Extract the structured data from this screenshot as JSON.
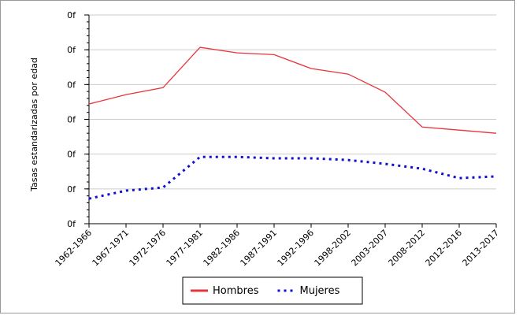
{
  "chart_data": {
    "type": "line",
    "y_label": "Tasas estandarizadas por edad",
    "categories": [
      "1962-1966",
      "1967-1971",
      "1972-1976",
      "1977-1981",
      "1982-1986",
      "1987-1991",
      "1992-1996",
      "1998-2002",
      "2003-2007",
      "2008-2012",
      "2012-2016",
      "2013-2017"
    ],
    "series": [
      {
        "name": "Hombres",
        "color": "#e8333a",
        "style": "solid",
        "values": [
          34.4,
          37.1,
          39.1,
          50.7,
          49.1,
          48.6,
          44.6,
          43.0,
          37.8,
          27.8,
          26.9,
          26.0
        ]
      },
      {
        "name": "Mujeres",
        "color": "#1010d0",
        "style": "dotted",
        "values": [
          7.2,
          9.5,
          10.4,
          19.2,
          19.2,
          18.8,
          18.8,
          18.3,
          17.2,
          15.8,
          13.1,
          13.6
        ]
      }
    ],
    "ylim": [
      0,
      60
    ],
    "yticks": [
      {
        "value": 0,
        "label": "0f"
      },
      {
        "value": 10,
        "label": "0f"
      },
      {
        "value": 20,
        "label": "0f"
      },
      {
        "value": 30,
        "label": "0f"
      },
      {
        "value": 40,
        "label": "0f"
      },
      {
        "value": 50,
        "label": "0f"
      },
      {
        "value": 60,
        "label": "0f"
      }
    ],
    "grid": true
  }
}
